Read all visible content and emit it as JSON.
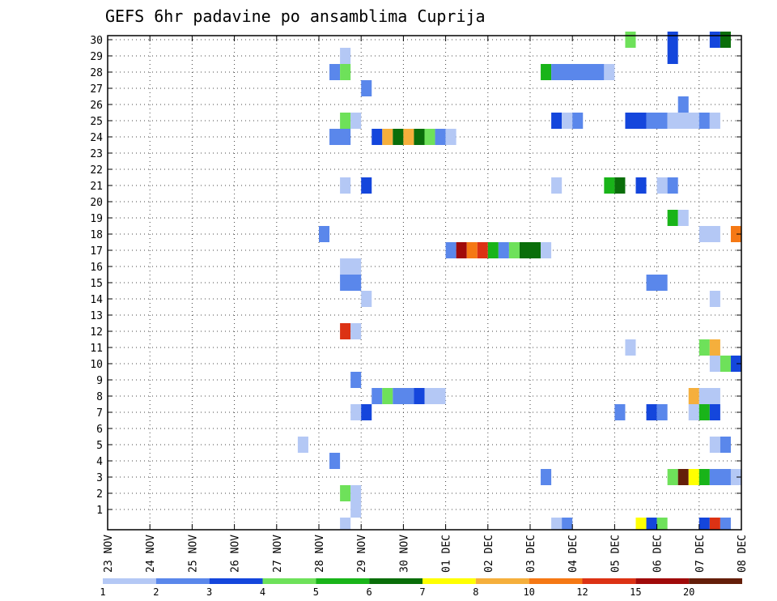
{
  "chart_data": {
    "type": "heatmap",
    "title": "GEFS 6hr padavine po ansamblima Cuprija",
    "xlabel": "",
    "ylabel": "",
    "x_tick_labels": [
      "23 NOV",
      "24 NOV",
      "25 NOV",
      "26 NOV",
      "27 NOV",
      "28 NOV",
      "29 NOV",
      "30 NOV",
      "01 DEC",
      "02 DEC",
      "03 DEC",
      "04 DEC",
      "05 DEC",
      "06 DEC",
      "07 DEC",
      "08 DEC"
    ],
    "y_tick_labels": [
      "1",
      "2",
      "3",
      "4",
      "5",
      "6",
      "7",
      "8",
      "9",
      "10",
      "11",
      "12",
      "13",
      "14",
      "15",
      "16",
      "17",
      "18",
      "19",
      "20",
      "21",
      "22",
      "23",
      "24",
      "25",
      "26",
      "27",
      "28",
      "29",
      "30"
    ],
    "x_range": [
      0,
      60
    ],
    "y_range": [
      0,
      30
    ],
    "grid": true,
    "legend": {
      "placement": "bottom",
      "thresholds": [
        "1",
        "2",
        "3",
        "4",
        "5",
        "6",
        "7",
        "8",
        "10",
        "12",
        "15",
        "20"
      ],
      "colors": [
        "#b4c8f5",
        "#5a87eb",
        "#1446dc",
        "#6ee15a",
        "#19b419",
        "#0a6e0a",
        "#ffff00",
        "#f5af3c",
        "#f57814",
        "#dc3214",
        "#a00a0a",
        "#641e0a"
      ]
    },
    "cells": [
      {
        "m": 30,
        "s": [
          [
            50,
            1,
            3
          ],
          [
            54,
            1,
            2
          ],
          [
            58,
            1,
            2
          ],
          [
            59,
            1,
            5
          ]
        ]
      },
      {
        "m": 29,
        "s": [
          [
            23,
            1,
            0
          ],
          [
            54,
            1,
            2
          ]
        ]
      },
      {
        "m": 28,
        "s": [
          [
            22,
            1,
            1
          ],
          [
            23,
            1,
            3
          ],
          [
            42,
            1,
            4
          ],
          [
            43,
            5,
            1
          ],
          [
            48,
            1,
            0
          ]
        ]
      },
      {
        "m": 27,
        "s": [
          [
            25,
            1,
            1
          ]
        ]
      },
      {
        "m": 26,
        "s": [
          [
            55,
            1,
            1
          ]
        ]
      },
      {
        "m": 25,
        "s": [
          [
            23,
            1,
            3
          ],
          [
            24,
            1,
            0
          ],
          [
            43,
            1,
            2
          ],
          [
            44,
            1,
            0
          ],
          [
            45,
            1,
            1
          ],
          [
            50,
            2,
            2
          ],
          [
            52,
            2,
            1
          ],
          [
            54,
            3,
            0
          ],
          [
            57,
            1,
            1
          ],
          [
            58,
            1,
            0
          ]
        ]
      },
      {
        "m": 24,
        "s": [
          [
            22,
            2,
            1
          ],
          [
            26,
            1,
            2
          ],
          [
            27,
            1,
            7
          ],
          [
            28,
            1,
            5
          ],
          [
            29,
            1,
            7
          ],
          [
            30,
            1,
            5
          ],
          [
            31,
            1,
            3
          ],
          [
            32,
            1,
            1
          ],
          [
            33,
            1,
            0
          ]
        ]
      },
      {
        "m": 21,
        "s": [
          [
            23,
            1,
            0
          ],
          [
            25,
            1,
            2
          ],
          [
            43,
            1,
            0
          ],
          [
            48,
            1,
            4
          ],
          [
            49,
            1,
            5
          ],
          [
            51,
            1,
            2
          ],
          [
            53,
            1,
            0
          ],
          [
            54,
            1,
            1
          ]
        ]
      },
      {
        "m": 19,
        "s": [
          [
            54,
            1,
            4
          ],
          [
            55,
            1,
            0
          ]
        ]
      },
      {
        "m": 18,
        "s": [
          [
            21,
            1,
            1
          ],
          [
            57,
            2,
            0
          ],
          [
            60,
            1,
            8
          ]
        ]
      },
      {
        "m": 17,
        "s": [
          [
            33,
            1,
            1
          ],
          [
            34,
            1,
            10
          ],
          [
            35,
            1,
            8
          ],
          [
            36,
            1,
            9
          ],
          [
            37,
            1,
            4
          ],
          [
            38,
            1,
            1
          ],
          [
            39,
            1,
            3
          ],
          [
            40,
            2,
            5
          ],
          [
            42,
            1,
            0
          ]
        ]
      },
      {
        "m": 16,
        "s": [
          [
            23,
            2,
            0
          ]
        ]
      },
      {
        "m": 15,
        "s": [
          [
            23,
            2,
            1
          ],
          [
            52,
            2,
            1
          ]
        ]
      },
      {
        "m": 14,
        "s": [
          [
            25,
            1,
            0
          ],
          [
            58,
            1,
            0
          ]
        ]
      },
      {
        "m": 12,
        "s": [
          [
            23,
            1,
            9
          ],
          [
            24,
            1,
            0
          ]
        ]
      },
      {
        "m": 11,
        "s": [
          [
            50,
            1,
            0
          ],
          [
            57,
            1,
            3
          ],
          [
            58,
            1,
            7
          ]
        ]
      },
      {
        "m": 10,
        "s": [
          [
            58,
            1,
            0
          ],
          [
            59,
            1,
            3
          ],
          [
            60,
            1,
            2
          ]
        ]
      },
      {
        "m": 9,
        "s": [
          [
            24,
            1,
            1
          ]
        ]
      },
      {
        "m": 8,
        "s": [
          [
            26,
            1,
            1
          ],
          [
            27,
            1,
            3
          ],
          [
            28,
            2,
            1
          ],
          [
            30,
            1,
            2
          ],
          [
            31,
            2,
            0
          ],
          [
            56,
            1,
            7
          ],
          [
            57,
            2,
            0
          ]
        ]
      },
      {
        "m": 7,
        "s": [
          [
            24,
            1,
            0
          ],
          [
            25,
            1,
            2
          ],
          [
            49,
            1,
            1
          ],
          [
            52,
            1,
            2
          ],
          [
            53,
            1,
            1
          ],
          [
            56,
            1,
            0
          ],
          [
            57,
            1,
            4
          ],
          [
            58,
            1,
            2
          ]
        ]
      },
      {
        "m": 5,
        "s": [
          [
            19,
            1,
            0
          ],
          [
            58,
            1,
            0
          ],
          [
            59,
            1,
            1
          ]
        ]
      },
      {
        "m": 4,
        "s": [
          [
            22,
            1,
            1
          ]
        ]
      },
      {
        "m": 3,
        "s": [
          [
            42,
            1,
            1
          ],
          [
            54,
            1,
            3
          ],
          [
            55,
            1,
            11
          ],
          [
            56,
            1,
            6
          ],
          [
            57,
            1,
            4
          ],
          [
            58,
            2,
            1
          ],
          [
            60,
            1,
            0
          ]
        ]
      },
      {
        "m": 2,
        "s": [
          [
            23,
            1,
            3
          ],
          [
            24,
            1,
            0
          ]
        ]
      },
      {
        "m": 1,
        "s": [
          [
            24,
            1,
            0
          ]
        ]
      },
      {
        "m": 0,
        "s": [
          [
            23,
            1,
            0
          ],
          [
            43,
            1,
            0
          ],
          [
            44,
            1,
            1
          ],
          [
            51,
            1,
            6
          ],
          [
            52,
            1,
            2
          ],
          [
            53,
            1,
            3
          ],
          [
            57,
            1,
            2
          ],
          [
            58,
            1,
            9
          ],
          [
            59,
            1,
            1
          ]
        ]
      }
    ]
  }
}
